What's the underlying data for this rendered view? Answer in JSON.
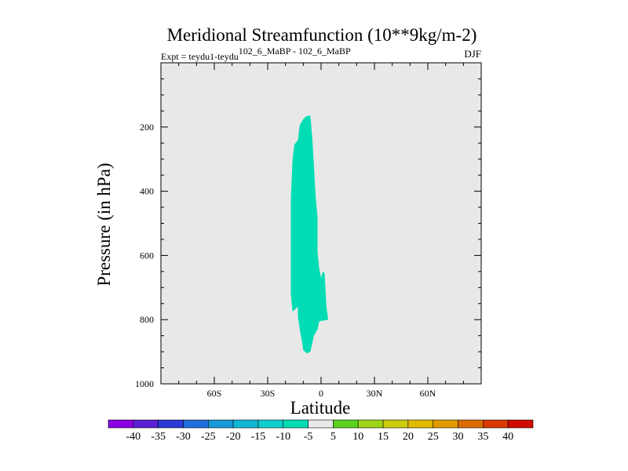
{
  "chart_data": {
    "type": "contour",
    "title": "Meridional Streamfunction (10**9kg/m-2)",
    "subtitle_left_prefix": "Expt = teydu1-teydu",
    "subtitle_left_sup": "102_6_MaBP - 102_6_MaBP",
    "season": "DJF",
    "xlabel": "Latitude",
    "ylabel": "Pressure (in hPa)",
    "xlim": [
      -90,
      90
    ],
    "ylim": [
      1000,
      0
    ],
    "xticks": [
      -60,
      -30,
      0,
      30,
      60
    ],
    "xtick_labels": [
      "60S",
      "30S",
      "0",
      "30N",
      "60N"
    ],
    "yticks": [
      200,
      400,
      600,
      800,
      1000
    ],
    "ytick_labels": [
      "200",
      "400",
      "600",
      "800",
      "1000"
    ],
    "background_color": "#e8e8e8",
    "filled_regions": [
      {
        "name": "negative-streamfunction-region",
        "level_range": "-5 to 0",
        "color": "#00ddb5",
        "outline": [
          [
            -8,
            165
          ],
          [
            -6,
            165
          ],
          [
            -5,
            230
          ],
          [
            -4,
            320
          ],
          [
            -3,
            420
          ],
          [
            -2,
            480
          ],
          [
            -2,
            590
          ],
          [
            -1,
            640
          ],
          [
            0,
            670
          ],
          [
            1,
            650
          ],
          [
            2,
            655
          ],
          [
            3,
            760
          ],
          [
            4,
            800
          ],
          [
            -1,
            805
          ],
          [
            -2,
            830
          ],
          [
            -4,
            850
          ],
          [
            -6,
            900
          ],
          [
            -8,
            905
          ],
          [
            -10,
            895
          ],
          [
            -11,
            860
          ],
          [
            -12,
            830
          ],
          [
            -13,
            790
          ],
          [
            -13,
            760
          ],
          [
            -16,
            775
          ],
          [
            -17,
            720
          ],
          [
            -17,
            640
          ],
          [
            -17,
            540
          ],
          [
            -17,
            420
          ],
          [
            -16,
            300
          ],
          [
            -15,
            255
          ],
          [
            -13,
            240
          ],
          [
            -12,
            195
          ],
          [
            -10,
            175
          ]
        ]
      }
    ],
    "colorbar": {
      "labels": [
        "-40",
        "-35",
        "-30",
        "-25",
        "-20",
        "-15",
        "-10",
        "-5",
        "5",
        "10",
        "15",
        "20",
        "25",
        "30",
        "35",
        "40"
      ],
      "colors": [
        "#8a00e0",
        "#5a1fd6",
        "#2a3ad6",
        "#1f6edc",
        "#1899d8",
        "#11b8d6",
        "#0fd0cc",
        "#00ddb5",
        "#e8e8e8",
        "#5ad21e",
        "#9ed514",
        "#cccc10",
        "#e2bb00",
        "#e29a00",
        "#dc6c00",
        "#d83a00",
        "#d00c00"
      ]
    }
  }
}
